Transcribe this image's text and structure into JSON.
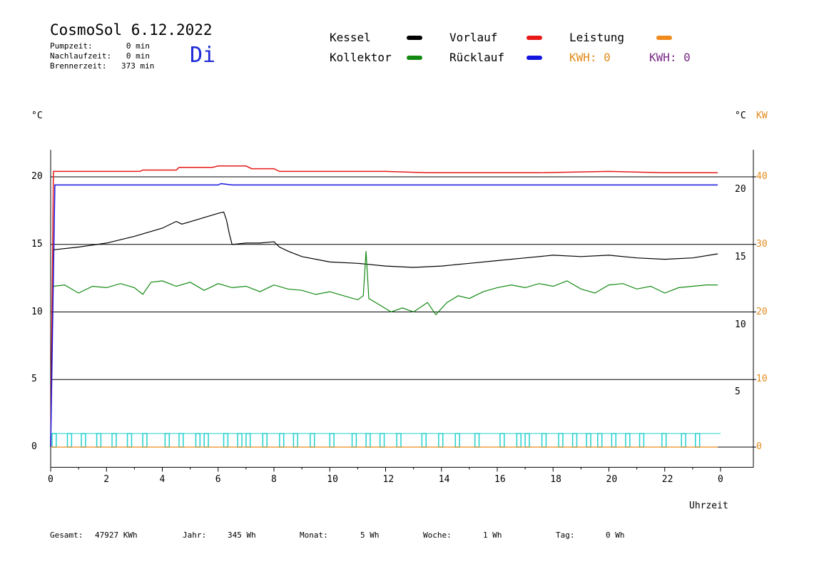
{
  "header": {
    "title": "CosmoSol 6.12.2022",
    "weekday": "Di",
    "stats": [
      {
        "label": "Pumpzeit:",
        "value": "0 min"
      },
      {
        "label": "Nachlaufzeit:",
        "value": "0 min"
      },
      {
        "label": "Brennerzeit:",
        "value": "373 min"
      }
    ]
  },
  "legend": {
    "items": [
      {
        "label": "Kessel",
        "color": "#000000"
      },
      {
        "label": "Vorlauf",
        "color": "#e81818"
      },
      {
        "label": "Leistung",
        "color": "#f08a1a"
      },
      {
        "label": "Kollektor",
        "color": "#128a12"
      },
      {
        "label": "Rücklauf",
        "color": "#1414e0"
      }
    ],
    "kwh1": "KWH: 0",
    "kwh2": "KWH: 0",
    "kwh1_color": "#e08b1c",
    "kwh2_color": "#7a2a86"
  },
  "footer": {
    "gesamt_label": "Gesamt:",
    "gesamt_value": "47927 KWh",
    "jahr_label": "Jahr:",
    "jahr_value": "345 Wh",
    "monat_label": "Monat:",
    "monat_value": "5 Wh",
    "woche_label": "Woche:",
    "woche_value": "1 Wh",
    "tag_label": "Tag:",
    "tag_value": "0 Wh"
  },
  "chart_data": {
    "type": "line",
    "xlabel": "Uhrzeit",
    "xlim": [
      0,
      24
    ],
    "x_tick_labels": [
      "0",
      "2",
      "4",
      "6",
      "8",
      "10",
      "12",
      "14",
      "16",
      "18",
      "20",
      "22",
      "0"
    ],
    "y_left_label": "°C",
    "y_right_label_temp": "°C",
    "y_right_label_power": "KW",
    "y_left_ticks": [
      0,
      5,
      10,
      15,
      20
    ],
    "y_right_temp_ticks": [
      5,
      10,
      15,
      20
    ],
    "y_right_power_ticks": [
      0,
      10,
      20,
      30,
      40
    ],
    "ylim": [
      -1.5,
      22
    ],
    "grid": "horizontal",
    "series": [
      {
        "name": "Vorlauf",
        "color": "#e81818",
        "points": [
          [
            0.0,
            0
          ],
          [
            0.1,
            20.4
          ],
          [
            3.2,
            20.4
          ],
          [
            3.3,
            20.5
          ],
          [
            4.5,
            20.5
          ],
          [
            4.6,
            20.7
          ],
          [
            5.8,
            20.7
          ],
          [
            6.0,
            20.8
          ],
          [
            7.0,
            20.8
          ],
          [
            7.2,
            20.6
          ],
          [
            8.0,
            20.6
          ],
          [
            8.2,
            20.4
          ],
          [
            12.0,
            20.4
          ],
          [
            13.5,
            20.3
          ],
          [
            16.0,
            20.3
          ],
          [
            17.5,
            20.3
          ],
          [
            20.0,
            20.4
          ],
          [
            22.0,
            20.3
          ],
          [
            23.9,
            20.3
          ]
        ]
      },
      {
        "name": "Rücklauf",
        "color": "#1414e0",
        "points": [
          [
            0.0,
            0
          ],
          [
            0.15,
            19.4
          ],
          [
            6.0,
            19.4
          ],
          [
            6.1,
            19.5
          ],
          [
            6.5,
            19.4
          ],
          [
            23.9,
            19.4
          ]
        ]
      },
      {
        "name": "Kessel",
        "color": "#000000",
        "points": [
          [
            0.1,
            14.6
          ],
          [
            1.0,
            14.8
          ],
          [
            2.0,
            15.1
          ],
          [
            3.0,
            15.6
          ],
          [
            4.0,
            16.2
          ],
          [
            4.5,
            16.7
          ],
          [
            4.7,
            16.5
          ],
          [
            5.2,
            16.8
          ],
          [
            6.0,
            17.3
          ],
          [
            6.2,
            17.4
          ],
          [
            6.3,
            16.8
          ],
          [
            6.4,
            15.8
          ],
          [
            6.5,
            15.0
          ],
          [
            7.0,
            15.1
          ],
          [
            7.5,
            15.1
          ],
          [
            8.0,
            15.2
          ],
          [
            8.2,
            14.8
          ],
          [
            8.5,
            14.5
          ],
          [
            9.0,
            14.1
          ],
          [
            10.0,
            13.7
          ],
          [
            11.0,
            13.6
          ],
          [
            12.0,
            13.4
          ],
          [
            13.0,
            13.3
          ],
          [
            14.0,
            13.4
          ],
          [
            15.0,
            13.6
          ],
          [
            16.0,
            13.8
          ],
          [
            17.0,
            14.0
          ],
          [
            18.0,
            14.2
          ],
          [
            19.0,
            14.1
          ],
          [
            20.0,
            14.2
          ],
          [
            21.0,
            14.0
          ],
          [
            22.0,
            13.9
          ],
          [
            23.0,
            14.0
          ],
          [
            23.9,
            14.3
          ]
        ]
      },
      {
        "name": "Kollektor",
        "color": "#128a12",
        "points": [
          [
            0.1,
            11.9
          ],
          [
            0.5,
            12.0
          ],
          [
            1.0,
            11.4
          ],
          [
            1.5,
            11.9
          ],
          [
            2.0,
            11.8
          ],
          [
            2.5,
            12.1
          ],
          [
            3.0,
            11.8
          ],
          [
            3.3,
            11.3
          ],
          [
            3.6,
            12.2
          ],
          [
            4.0,
            12.3
          ],
          [
            4.5,
            11.9
          ],
          [
            5.0,
            12.2
          ],
          [
            5.5,
            11.6
          ],
          [
            6.0,
            12.1
          ],
          [
            6.5,
            11.8
          ],
          [
            7.0,
            11.9
          ],
          [
            7.5,
            11.5
          ],
          [
            8.0,
            12.0
          ],
          [
            8.5,
            11.7
          ],
          [
            9.0,
            11.6
          ],
          [
            9.5,
            11.3
          ],
          [
            10.0,
            11.5
          ],
          [
            10.5,
            11.2
          ],
          [
            11.0,
            10.9
          ],
          [
            11.2,
            11.2
          ],
          [
            11.3,
            14.5
          ],
          [
            11.4,
            11.0
          ],
          [
            11.8,
            10.5
          ],
          [
            12.2,
            10.0
          ],
          [
            12.6,
            10.3
          ],
          [
            13.0,
            10.0
          ],
          [
            13.5,
            10.7
          ],
          [
            13.8,
            9.8
          ],
          [
            14.2,
            10.7
          ],
          [
            14.6,
            11.2
          ],
          [
            15.0,
            11.0
          ],
          [
            15.5,
            11.5
          ],
          [
            16.0,
            11.8
          ],
          [
            16.5,
            12.0
          ],
          [
            17.0,
            11.8
          ],
          [
            17.5,
            12.1
          ],
          [
            18.0,
            11.9
          ],
          [
            18.5,
            12.3
          ],
          [
            19.0,
            11.7
          ],
          [
            19.5,
            11.4
          ],
          [
            20.0,
            12.0
          ],
          [
            20.5,
            12.1
          ],
          [
            21.0,
            11.7
          ],
          [
            21.5,
            11.9
          ],
          [
            22.0,
            11.4
          ],
          [
            22.5,
            11.8
          ],
          [
            23.0,
            11.9
          ],
          [
            23.5,
            12.0
          ],
          [
            23.9,
            12.0
          ]
        ]
      },
      {
        "name": "Leistung",
        "color": "#f08a1a",
        "points": [
          [
            0.0,
            0
          ],
          [
            23.9,
            0
          ]
        ]
      }
    ],
    "pump_pulse_series": {
      "color": "#22d0d0",
      "starts": [
        0.05,
        0.6,
        1.1,
        1.65,
        2.2,
        2.75,
        3.3,
        4.1,
        4.6,
        5.2,
        5.5,
        6.2,
        6.7,
        7.0,
        7.6,
        8.2,
        8.7,
        9.3,
        10.0,
        10.8,
        11.3,
        11.8,
        12.4,
        13.3,
        13.9,
        14.5,
        15.2,
        16.1,
        16.7,
        17.0,
        17.6,
        18.2,
        18.7,
        19.2,
        19.6,
        20.1,
        20.6,
        21.1,
        21.9,
        22.6,
        23.1
      ],
      "width_h": 0.15,
      "height_c": 1.0
    }
  }
}
